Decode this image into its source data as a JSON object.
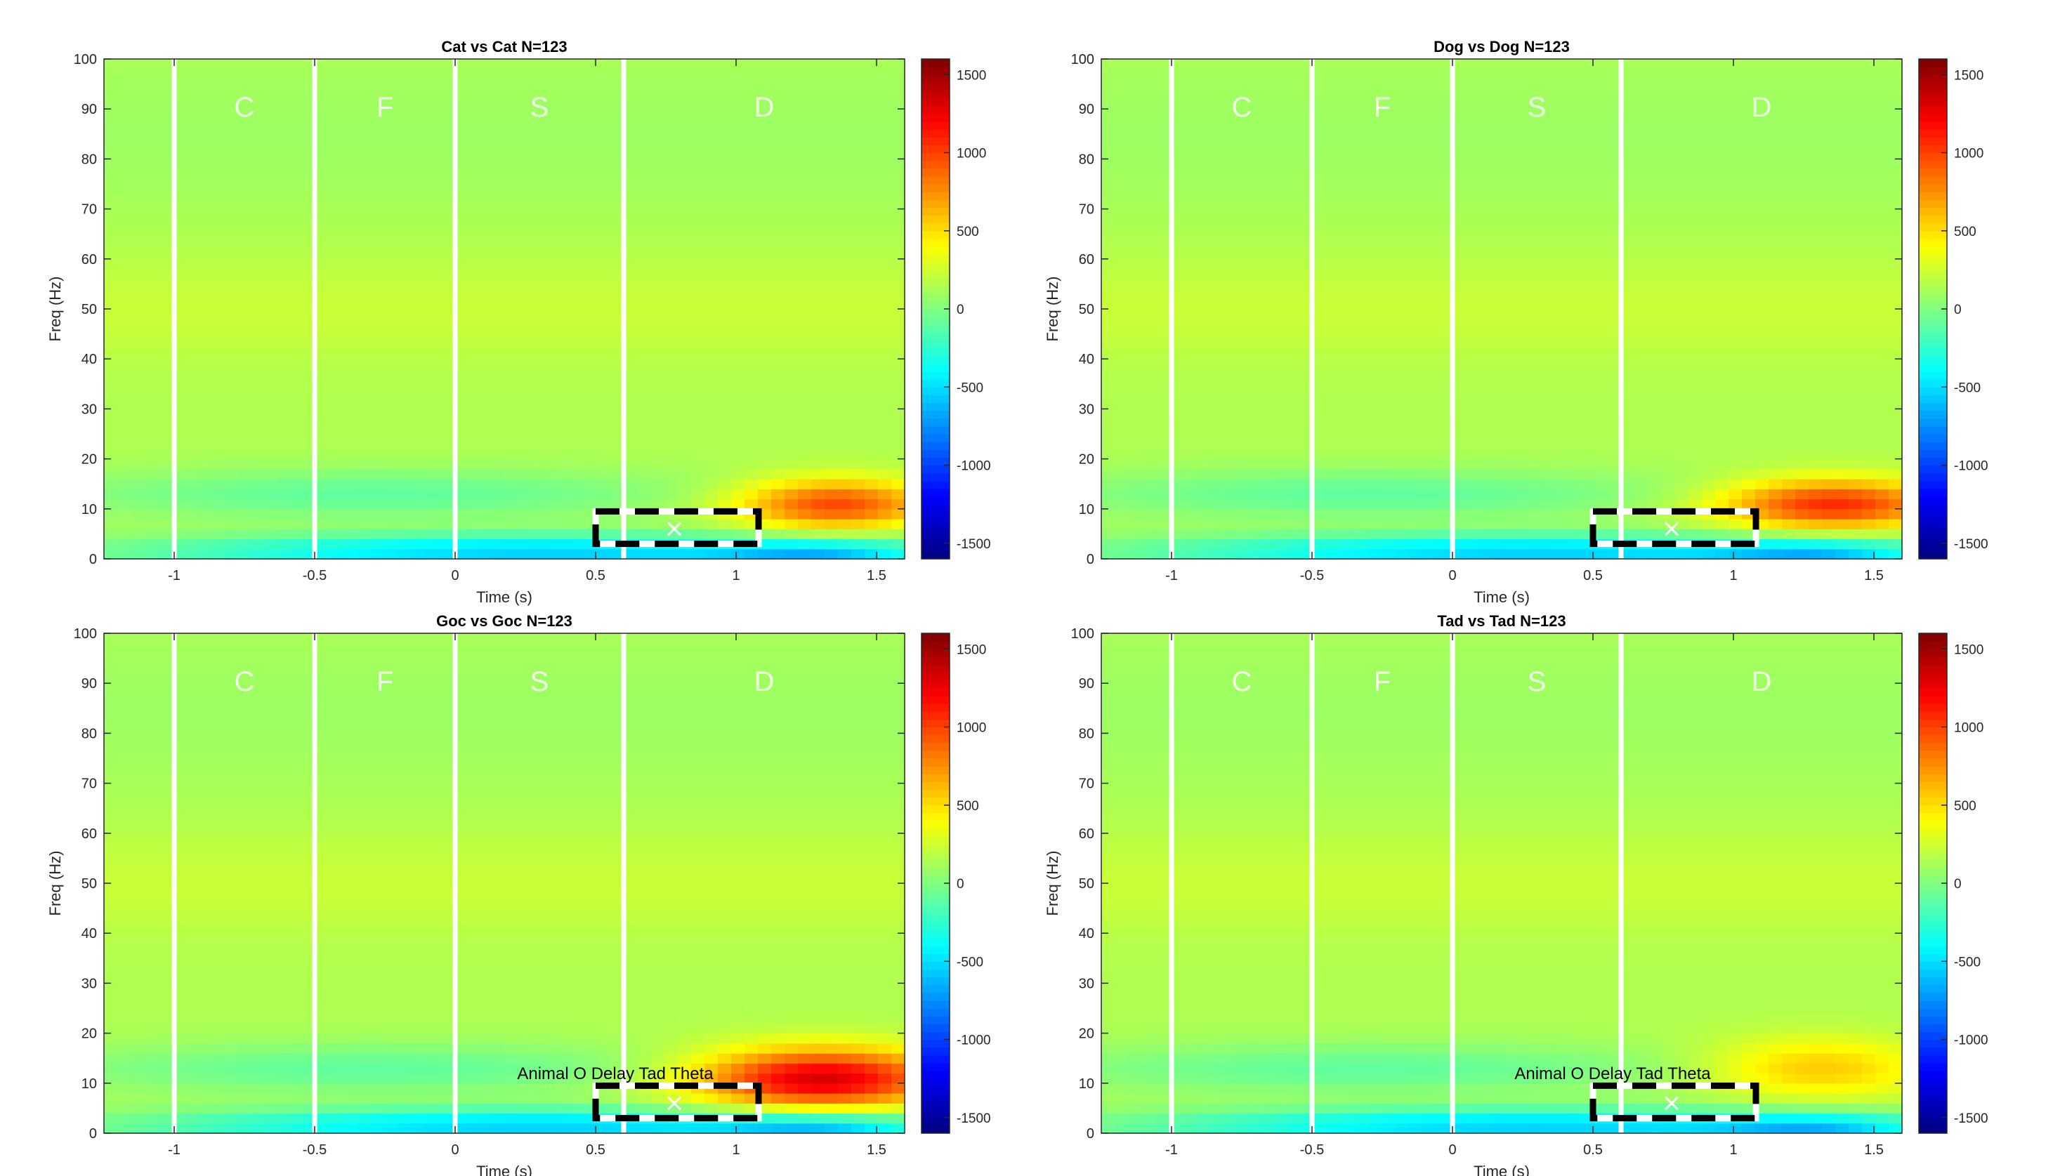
{
  "colorbar": {
    "colormap": "jet",
    "clim": [
      -1600,
      1600
    ],
    "ticks": [
      "1500",
      "1000",
      "500",
      "0",
      "-500",
      "-1000",
      "-1500"
    ]
  },
  "chart_data": [
    {
      "type": "heatmap",
      "title": "Cat vs Cat N=123",
      "xlabel": "Time (s)",
      "ylabel": "Freq (Hz)",
      "xlim": [
        -1.25,
        1.6
      ],
      "ylim": [
        0,
        100
      ],
      "xticks": [
        "-1",
        "-0.5",
        "0",
        "0.5",
        "1",
        "1.5"
      ],
      "yticks": [
        "0",
        "10",
        "20",
        "30",
        "40",
        "50",
        "60",
        "70",
        "80",
        "90",
        "100"
      ],
      "event_lines_s": [
        -1,
        -0.5,
        0,
        0.6
      ],
      "epoch_labels": [
        "C",
        "F",
        "S",
        "D"
      ],
      "roi": {
        "time_s": [
          0.5,
          1.08
        ],
        "freq_hz": [
          3,
          9.5
        ],
        "center": [
          0.78,
          6
        ]
      },
      "annotation": "",
      "blobs": [
        {
          "t": 1.35,
          "f": 11,
          "st": 0.35,
          "sf": 5,
          "v": 850
        },
        {
          "t": 0.3,
          "f": 1.5,
          "st": 1.4,
          "sf": 3.5,
          "v": -700
        },
        {
          "t": 1.3,
          "f": 1.0,
          "st": 0.35,
          "sf": 2.5,
          "v": -400
        }
      ]
    },
    {
      "type": "heatmap",
      "title": "Dog vs Dog N=123",
      "xlabel": "Time (s)",
      "ylabel": "Freq (Hz)",
      "xlim": [
        -1.25,
        1.6
      ],
      "ylim": [
        0,
        100
      ],
      "xticks": [
        "-1",
        "-0.5",
        "0",
        "0.5",
        "1",
        "1.5"
      ],
      "yticks": [
        "0",
        "10",
        "20",
        "30",
        "40",
        "50",
        "60",
        "70",
        "80",
        "90",
        "100"
      ],
      "event_lines_s": [
        -1,
        -0.5,
        0,
        0.6
      ],
      "epoch_labels": [
        "C",
        "F",
        "S",
        "D"
      ],
      "roi": {
        "time_s": [
          0.5,
          1.08
        ],
        "freq_hz": [
          3,
          9.5
        ],
        "center": [
          0.78,
          6
        ]
      },
      "annotation": "",
      "blobs": [
        {
          "t": 1.35,
          "f": 11,
          "st": 0.4,
          "sf": 5,
          "v": 950
        },
        {
          "t": 0.3,
          "f": 1.5,
          "st": 1.4,
          "sf": 3.5,
          "v": -700
        },
        {
          "t": 1.3,
          "f": 1.0,
          "st": 0.35,
          "sf": 2.5,
          "v": -400
        }
      ]
    },
    {
      "type": "heatmap",
      "title": "Goc vs Goc N=123",
      "xlabel": "Time (s)",
      "ylabel": "Freq (Hz)",
      "xlim": [
        -1.25,
        1.6
      ],
      "ylim": [
        0,
        100
      ],
      "xticks": [
        "-1",
        "-0.5",
        "0",
        "0.5",
        "1",
        "1.5"
      ],
      "yticks": [
        "0",
        "10",
        "20",
        "30",
        "40",
        "50",
        "60",
        "70",
        "80",
        "90",
        "100"
      ],
      "event_lines_s": [
        -1,
        -0.5,
        0,
        0.6
      ],
      "epoch_labels": [
        "C",
        "F",
        "S",
        "D"
      ],
      "roi": {
        "time_s": [
          0.5,
          1.08
        ],
        "freq_hz": [
          3,
          9.5
        ],
        "center": [
          0.78,
          6
        ]
      },
      "annotation": "Animal O Delay Tad Theta",
      "blobs": [
        {
          "t": 1.3,
          "f": 11,
          "st": 0.45,
          "sf": 6,
          "v": 1200
        },
        {
          "t": 0.3,
          "f": 1.5,
          "st": 1.4,
          "sf": 3.5,
          "v": -700
        },
        {
          "t": 1.3,
          "f": 1.0,
          "st": 0.35,
          "sf": 2.5,
          "v": -400
        }
      ]
    },
    {
      "type": "heatmap",
      "title": "Tad vs Tad N=123",
      "xlabel": "Time (s)",
      "ylabel": "Freq (Hz)",
      "xlim": [
        -1.25,
        1.6
      ],
      "ylim": [
        0,
        100
      ],
      "xticks": [
        "-1",
        "-0.5",
        "0",
        "0.5",
        "1",
        "1.5"
      ],
      "yticks": [
        "0",
        "10",
        "20",
        "30",
        "40",
        "50",
        "60",
        "70",
        "80",
        "90",
        "100"
      ],
      "event_lines_s": [
        -1,
        -0.5,
        0,
        0.6
      ],
      "epoch_labels": [
        "C",
        "F",
        "S",
        "D"
      ],
      "roi": {
        "time_s": [
          0.5,
          1.08
        ],
        "freq_hz": [
          3,
          9.5
        ],
        "center": [
          0.78,
          6
        ]
      },
      "annotation": "Animal O Delay Tad Theta",
      "blobs": [
        {
          "t": 1.3,
          "f": 13,
          "st": 0.4,
          "sf": 6,
          "v": 450
        },
        {
          "t": 0.3,
          "f": 1.5,
          "st": 1.4,
          "sf": 3.5,
          "v": -700
        },
        {
          "t": 1.3,
          "f": 1.0,
          "st": 0.35,
          "sf": 2.5,
          "v": -400
        }
      ]
    }
  ]
}
